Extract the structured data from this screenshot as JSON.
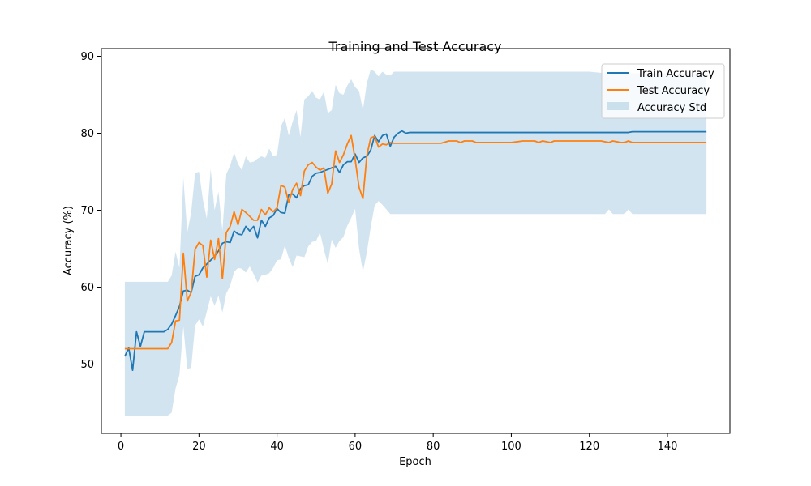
{
  "chart_data": {
    "type": "line",
    "title": "Training and Test Accuracy",
    "xlabel": "Epoch",
    "ylabel": "Accuracy (%)",
    "xlim": [
      -5,
      156
    ],
    "ylim": [
      41,
      91
    ],
    "xticks": [
      0,
      20,
      40,
      60,
      80,
      100,
      120,
      140
    ],
    "yticks": [
      50,
      60,
      70,
      80,
      90
    ],
    "legend_position": "top-right",
    "grid": false,
    "series": [
      {
        "name": "Train Accuracy",
        "color": "#1f77b4",
        "x": [
          1,
          2,
          3,
          4,
          5,
          6,
          7,
          8,
          9,
          10,
          11,
          12,
          13,
          14,
          15,
          16,
          17,
          18,
          19,
          20,
          21,
          22,
          23,
          24,
          25,
          26,
          27,
          28,
          29,
          30,
          31,
          32,
          33,
          34,
          35,
          36,
          37,
          38,
          39,
          40,
          41,
          42,
          43,
          44,
          45,
          46,
          47,
          48,
          49,
          50,
          51,
          52,
          53,
          54,
          55,
          56,
          57,
          58,
          59,
          60,
          61,
          62,
          63,
          64,
          65,
          66,
          67,
          68,
          69,
          70,
          71,
          72,
          73,
          74,
          75,
          80,
          90,
          100,
          110,
          120,
          130,
          131,
          140,
          150
        ],
        "values": [
          51.0,
          52.1,
          49.2,
          54.2,
          52.3,
          54.2,
          54.2,
          54.2,
          54.2,
          54.2,
          54.2,
          54.5,
          55.2,
          56.3,
          57.5,
          59.5,
          59.6,
          59.3,
          61.4,
          61.6,
          62.5,
          63.0,
          63.5,
          64.0,
          64.7,
          65.7,
          65.9,
          65.8,
          67.3,
          66.9,
          66.8,
          67.9,
          67.3,
          67.9,
          66.4,
          68.7,
          67.9,
          69.0,
          69.3,
          70.2,
          69.7,
          69.6,
          72.0,
          72.1,
          71.6,
          72.8,
          73.2,
          73.3,
          74.4,
          74.8,
          74.9,
          75.1,
          75.3,
          75.5,
          75.7,
          74.9,
          75.9,
          76.3,
          76.3,
          77.3,
          76.2,
          76.8,
          77.0,
          77.8,
          79.7,
          78.9,
          79.7,
          79.9,
          78.3,
          79.5,
          80.0,
          80.3,
          80.0,
          80.1,
          80.1,
          80.1,
          80.1,
          80.1,
          80.1,
          80.1,
          80.1,
          80.2,
          80.2,
          80.2
        ]
      },
      {
        "name": "Test Accuracy",
        "color": "#ff7f0e",
        "x": [
          1,
          2,
          3,
          4,
          5,
          6,
          7,
          8,
          9,
          10,
          11,
          12,
          13,
          14,
          15,
          16,
          17,
          18,
          19,
          20,
          21,
          22,
          23,
          24,
          25,
          26,
          27,
          28,
          29,
          30,
          31,
          32,
          33,
          34,
          35,
          36,
          37,
          38,
          39,
          40,
          41,
          42,
          43,
          44,
          45,
          46,
          47,
          48,
          49,
          50,
          51,
          52,
          53,
          54,
          55,
          56,
          57,
          58,
          59,
          60,
          61,
          62,
          63,
          64,
          65,
          66,
          67,
          68,
          69,
          70,
          71,
          75,
          80,
          82,
          84,
          86,
          87,
          88,
          90,
          91,
          100,
          103,
          106,
          107,
          108,
          110,
          111,
          120,
          123,
          124,
          125,
          126,
          128,
          129,
          130,
          131,
          140,
          150
        ],
        "values": [
          52.0,
          52.0,
          52.0,
          52.0,
          52.0,
          52.0,
          52.0,
          52.0,
          52.0,
          52.0,
          52.0,
          52.0,
          52.8,
          55.6,
          55.7,
          64.4,
          58.2,
          59.3,
          64.9,
          65.8,
          65.4,
          61.3,
          66.1,
          63.6,
          66.3,
          61.1,
          67.1,
          67.9,
          69.8,
          68.1,
          70.1,
          69.7,
          69.2,
          68.7,
          68.7,
          70.1,
          69.4,
          70.3,
          69.8,
          70.3,
          73.2,
          73.0,
          71.0,
          72.7,
          73.5,
          71.9,
          75.1,
          75.9,
          76.2,
          75.6,
          75.2,
          75.5,
          72.2,
          73.4,
          77.7,
          76.2,
          77.2,
          78.6,
          79.7,
          76.6,
          73.0,
          71.5,
          77.1,
          79.4,
          79.6,
          78.2,
          78.6,
          78.5,
          78.8,
          78.7,
          78.7,
          78.7,
          78.7,
          78.7,
          79.0,
          79.0,
          78.8,
          79.0,
          79.0,
          78.8,
          78.8,
          79.0,
          79.0,
          78.8,
          79.0,
          78.8,
          79.0,
          79.0,
          79.0,
          78.9,
          78.8,
          79.0,
          78.8,
          78.8,
          79.0,
          78.8,
          78.8,
          78.8
        ]
      }
    ],
    "band": {
      "name": "Accuracy Std",
      "color": "#1f77b4",
      "opacity": 0.2,
      "x": [
        1,
        12,
        13,
        14,
        15,
        16,
        17,
        18,
        19,
        20,
        21,
        22,
        23,
        24,
        25,
        26,
        27,
        28,
        29,
        30,
        31,
        32,
        33,
        34,
        35,
        36,
        37,
        38,
        39,
        40,
        41,
        42,
        43,
        44,
        45,
        46,
        47,
        48,
        49,
        50,
        51,
        52,
        53,
        54,
        55,
        56,
        57,
        58,
        59,
        60,
        61,
        62,
        63,
        64,
        65,
        66,
        67,
        68,
        69,
        70,
        80,
        90,
        100,
        110,
        120,
        124,
        125,
        126,
        128,
        129,
        130,
        131,
        140,
        150
      ],
      "upper": [
        60.7,
        60.7,
        61.5,
        64.6,
        62.5,
        74.2,
        67.1,
        69.7,
        74.8,
        75.0,
        71.4,
        68.9,
        75.4,
        70.0,
        72.4,
        67.3,
        74.7,
        75.8,
        77.5,
        76.0,
        75.2,
        77.0,
        76.2,
        76.3,
        76.7,
        77.0,
        76.8,
        78.0,
        77.0,
        77.2,
        80.9,
        82.0,
        79.7,
        81.5,
        83.0,
        79.5,
        84.4,
        84.8,
        85.5,
        84.6,
        84.4,
        85.4,
        82.6,
        83.0,
        86.3,
        85.2,
        85.0,
        86.2,
        87.0,
        86.0,
        85.5,
        83.0,
        86.5,
        88.3,
        88.0,
        87.4,
        88.0,
        87.6,
        87.5,
        88.0,
        88.0,
        88.0,
        88.0,
        88.0,
        88.0,
        87.8,
        87.5,
        87.8,
        87.8,
        87.8,
        87.8,
        87.8,
        87.8,
        87.8
      ],
      "lower": [
        43.3,
        43.3,
        43.7,
        46.8,
        48.6,
        54.9,
        49.4,
        49.5,
        55.0,
        55.8,
        54.9,
        56.8,
        58.8,
        57.6,
        58.9,
        56.7,
        59.2,
        60.2,
        62.0,
        62.5,
        62.4,
        61.9,
        62.7,
        61.7,
        60.6,
        61.5,
        61.6,
        61.8,
        62.5,
        63.5,
        63.6,
        65.4,
        63.8,
        62.6,
        64.1,
        64.0,
        63.9,
        65.3,
        65.9,
        66.0,
        67.1,
        64.9,
        63.0,
        66.2,
        65.1,
        66.0,
        66.5,
        68.0,
        69.0,
        70.2,
        65.0,
        62.0,
        64.5,
        67.8,
        70.6,
        71.2,
        70.7,
        70.1,
        69.5,
        69.5,
        69.5,
        69.5,
        69.5,
        69.5,
        69.5,
        69.5,
        70.1,
        69.5,
        69.5,
        69.5,
        70.1,
        69.5,
        69.5,
        69.5
      ]
    }
  }
}
